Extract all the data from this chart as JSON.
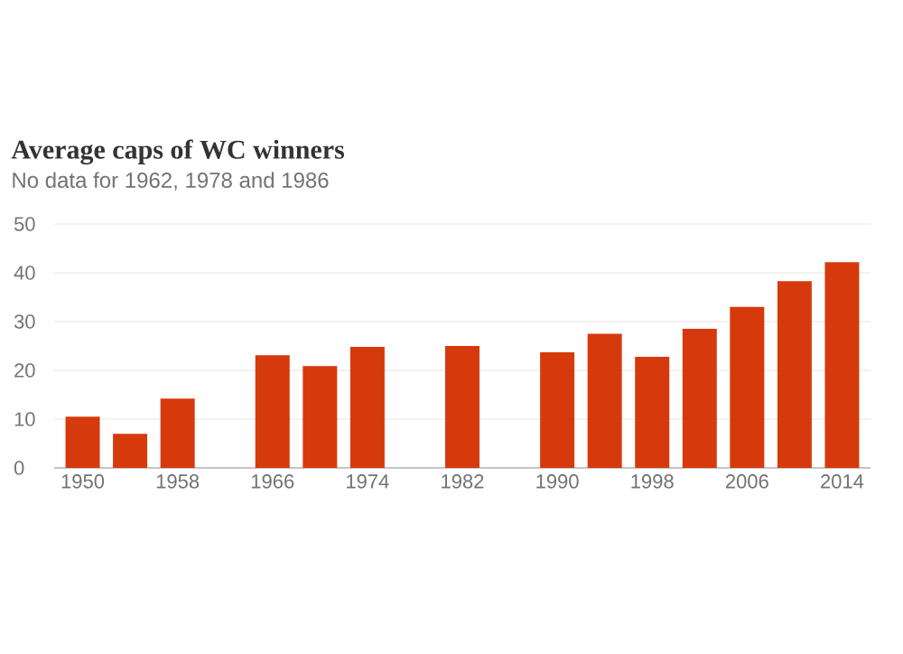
{
  "chart_data": {
    "type": "bar",
    "title": "Average caps of WC winners",
    "subtitle": "No data for 1962, 1978 and 1986",
    "categories": [
      "1950",
      null,
      "1958",
      null,
      "1966",
      null,
      "1974",
      null,
      "1982",
      null,
      "1990",
      null,
      "1998",
      null,
      "2006",
      null,
      "2014"
    ],
    "values": [
      10.5,
      7.0,
      14.2,
      null,
      23.1,
      20.9,
      24.8,
      null,
      25.0,
      null,
      23.7,
      27.5,
      22.8,
      28.5,
      33.0,
      38.3,
      42.2
    ],
    "color": "#d63a0c",
    "ylim": [
      0,
      50
    ],
    "yticks": [
      0,
      10,
      20,
      30,
      40,
      50
    ],
    "grid": "y"
  }
}
